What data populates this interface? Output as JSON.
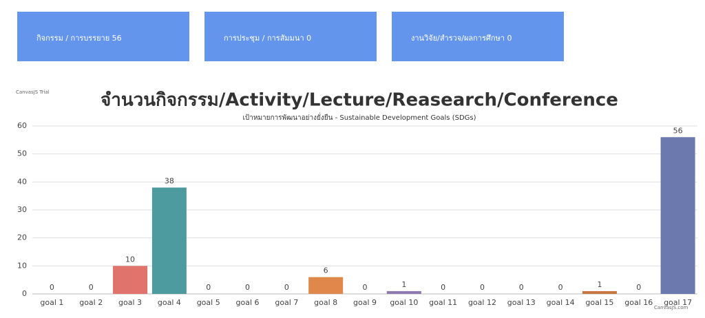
{
  "cards": [
    "กิจกรรม / การบรรยาย 56",
    "การประชุม / การสัมมนา 0",
    "งานวิจัย/สำรวจ/ผลการศึกษา 0"
  ],
  "watermarks": {
    "trial": "CanvasJS Trial",
    "site": "CanvasJS.com"
  },
  "chart_data": {
    "type": "bar",
    "title": "จำนวนกิจกรรม/Activity/Lecture/Reasearch/Conference",
    "subtitle": "เป้าหมายการพัฒนาอย่างยั่งยืน - Sustainable Development Goals (SDGs)",
    "categories": [
      "goal 1",
      "goal 2",
      "goal 3",
      "goal 4",
      "goal 5",
      "goal 6",
      "goal 7",
      "goal 8",
      "goal 9",
      "goal 10",
      "goal 11",
      "goal 12",
      "goal 13",
      "goal 14",
      "goal 15",
      "goal 16",
      "goal 17"
    ],
    "values": [
      0,
      0,
      10,
      38,
      0,
      0,
      0,
      6,
      0,
      1,
      0,
      0,
      0,
      0,
      1,
      0,
      56
    ],
    "colors": [
      "#4f81bc",
      "#9bbb58",
      "#e0736b",
      "#4d9b9f",
      "#4f81bc",
      "#9bbb58",
      "#4aacc5",
      "#e0884b",
      "#4f81bc",
      "#8e79b0",
      "#4aacc5",
      "#9bbb58",
      "#4f81bc",
      "#4aacc5",
      "#c7773f",
      "#9bbb58",
      "#6b79ae"
    ],
    "ylim": [
      0,
      60
    ],
    "yticks": [
      0,
      10,
      20,
      30,
      40,
      50,
      60
    ],
    "grid": true
  }
}
